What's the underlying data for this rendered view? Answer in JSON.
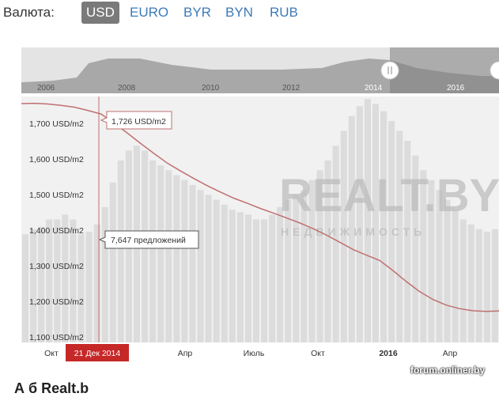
{
  "currency": {
    "label": "Валюта:",
    "options": [
      "USD",
      "EURO",
      "BYR",
      "BYN",
      "RUB"
    ],
    "selected": "USD"
  },
  "navigator": {
    "year_labels": [
      "2006",
      "2008",
      "2010",
      "2012",
      "2014",
      "2016"
    ]
  },
  "chart_data": {
    "type": "line",
    "y_axis_labels": [
      "1,700 USD/m2",
      "1,600 USD/m2",
      "1,500 USD/m2",
      "1,400 USD/m2",
      "1,300 USD/m2",
      "1,200 USD/m2",
      "1,100 USD/m2"
    ],
    "y_values": [
      1700,
      1600,
      1500,
      1400,
      1300,
      1200,
      1100
    ],
    "ylim": [
      1085,
      1775
    ],
    "x_tick_labels": [
      "Окт",
      "Апр",
      "Июль",
      "Окт",
      "2016",
      "Апр"
    ],
    "cursor_date": "21 Дек 2014",
    "price_tooltip": "1,726 USD/m2",
    "count_tooltip": "7,647 предложений",
    "series": [
      {
        "name": "",
        "style": "line",
        "color": "#c07070",
        "values": [
          1755,
          1756,
          1754,
          1750,
          1745,
          1736,
          1726,
          1700,
          1672,
          1643,
          1615,
          1588,
          1566,
          1545,
          1525,
          1507,
          1490,
          1476,
          1461,
          1448,
          1434,
          1420,
          1404,
          1386,
          1366,
          1346,
          1330,
          1315,
          1287,
          1256,
          1228,
          1206,
          1190,
          1180,
          1174,
          1172,
          1173
        ]
      },
      {
        "name": "",
        "style": "bars",
        "color": "#dcdcdc",
        "values": [
          0.44,
          0.46,
          0.47,
          0.5,
          0.5,
          0.52,
          0.5,
          0.44,
          0.45,
          0.48,
          0.55,
          0.65,
          0.74,
          0.78,
          0.8,
          0.78,
          0.74,
          0.72,
          0.7,
          0.68,
          0.66,
          0.64,
          0.62,
          0.6,
          0.58,
          0.56,
          0.54,
          0.53,
          0.52,
          0.5,
          0.5,
          0.52,
          0.55,
          0.58,
          0.6,
          0.62,
          0.66,
          0.7,
          0.74,
          0.8,
          0.86,
          0.92,
          0.96,
          0.99,
          0.97,
          0.94,
          0.9,
          0.86,
          0.82,
          0.76,
          0.7,
          0.66,
          0.62,
          0.58,
          0.54,
          0.5,
          0.48,
          0.46,
          0.45,
          0.46
        ]
      }
    ]
  },
  "watermark": {
    "brand": "REALT.BY",
    "subtitle": "НЕДВИЖИМОСТЬ"
  },
  "source": "forum.onliner.by",
  "bottom_text": "А                          б                                                          Realt.b"
}
